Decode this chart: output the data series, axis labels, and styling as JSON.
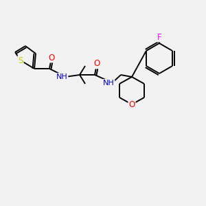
{
  "background_color": "#f2f2f2",
  "bond_color": "#000000",
  "atom_colors": {
    "S": "#cccc00",
    "O": "#ff0000",
    "N": "#0000cc",
    "F": "#ff00ff",
    "C": "#000000"
  },
  "lw": 1.4
}
